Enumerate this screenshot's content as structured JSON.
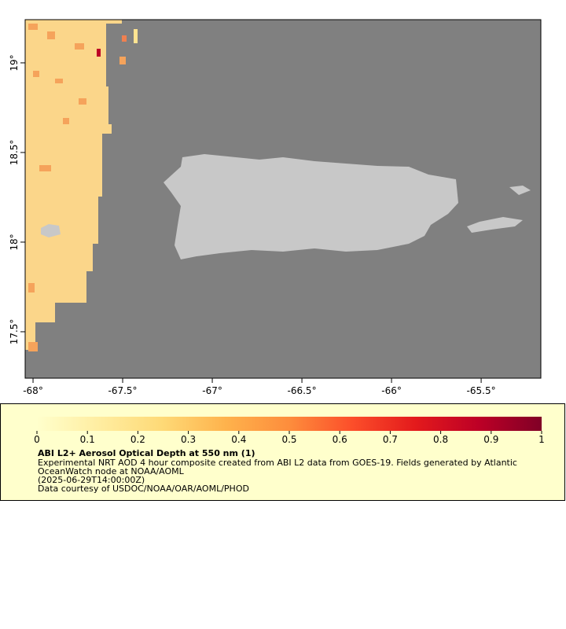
{
  "map": {
    "xlim": [
      -68.044,
      -65.167
    ],
    "ylim": [
      17.241,
      19.241
    ],
    "xticks": [
      {
        "value": -68,
        "label": "-68°"
      },
      {
        "value": -67.5,
        "label": "-67.5°"
      },
      {
        "value": -67,
        "label": "-67°"
      },
      {
        "value": -66.5,
        "label": "-66.5°"
      },
      {
        "value": -66,
        "label": "-66°"
      },
      {
        "value": -65.5,
        "label": "-65.5°"
      }
    ],
    "yticks": [
      {
        "value": 17.5,
        "label": "17.5°"
      },
      {
        "value": 18,
        "label": "18°"
      },
      {
        "value": 18.5,
        "label": "18.5°"
      },
      {
        "value": 19,
        "label": "19°"
      }
    ]
  },
  "colorbar": {
    "lim": [
      0,
      1
    ],
    "ticks": [
      0,
      0.1,
      0.2,
      0.3,
      0.4,
      0.5,
      0.6,
      0.7,
      0.8,
      0.9,
      1
    ],
    "colors": [
      "#ffffcc",
      "#ffeda0",
      "#fed976",
      "#feb24c",
      "#fd8d3c",
      "#fc4e2a",
      "#e31a1c",
      "#bd0026",
      "#800026"
    ]
  },
  "caption": {
    "title": "ABI L2+ Aerosol Optical Depth at 550 nm (1)",
    "lines": [
      "Experimental NRT AOD 4 hour composite created from ABI L2 data from GOES-19. Fields generated by Atlantic",
      "OceanWatch node at NOAA/AOML",
      "(2025-06-29T14:00:00Z)",
      "Data courtesy of USDOC/NOAA/OAR/AOML/PHOD"
    ]
  }
}
